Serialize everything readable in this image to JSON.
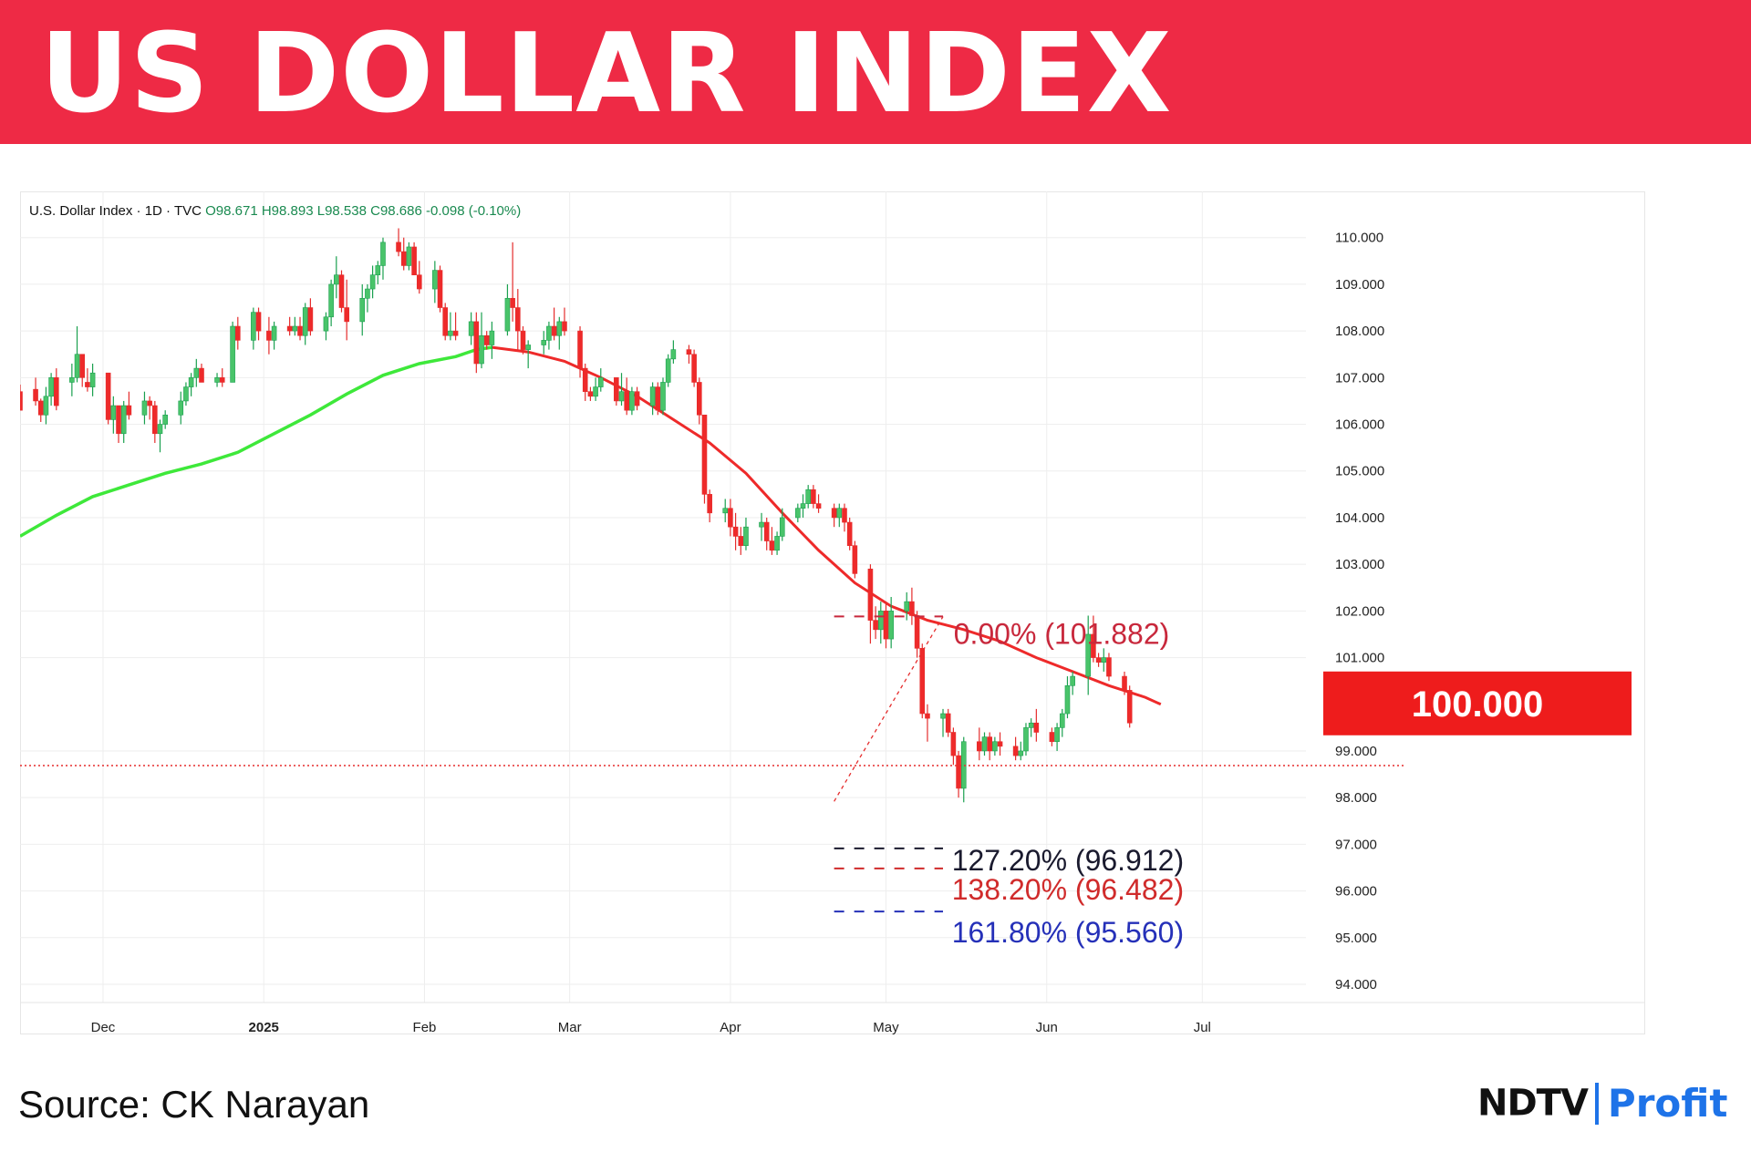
{
  "header": {
    "title": "US DOLLAR INDEX"
  },
  "chart_data": {
    "type": "candlestick",
    "info": {
      "symbol": "U.S. Dollar Index · 1D · TVC",
      "open": "O98.671",
      "high": "H98.893",
      "low": "L98.538",
      "close": "C98.686",
      "change": "-0.098 (-0.10%)"
    },
    "y_ticks": [
      "110.000",
      "109.000",
      "108.000",
      "107.000",
      "106.000",
      "105.000",
      "104.000",
      "103.000",
      "102.000",
      "101.000",
      "99.000",
      "98.000",
      "97.000",
      "96.000",
      "95.000",
      "94.000"
    ],
    "y_tick_values": [
      110,
      109,
      108,
      107,
      106,
      105,
      104,
      103,
      102,
      101,
      99,
      98,
      97,
      96,
      95,
      94
    ],
    "x_ticks": [
      "Dec",
      "2025",
      "Feb",
      "Mar",
      "Apr",
      "May",
      "Jun",
      "Jul"
    ],
    "x_tick_dates": [
      "2024-12-01",
      "2025-01-01",
      "2025-02-01",
      "2025-03-01",
      "2025-04-01",
      "2025-05-01",
      "2025-06-01",
      "2025-07-01"
    ],
    "ylim": [
      94,
      110.6
    ],
    "xlim": [
      "2024-11-15",
      "2025-07-21"
    ],
    "last_price": 98.686,
    "price_label": "100.000",
    "price_label_value": 100,
    "fib_levels": [
      {
        "label": "0.00% (101.882)",
        "value": 101.882,
        "color": "#c8283c"
      },
      {
        "label": "127.20% (96.912)",
        "value": 96.912,
        "color": "#1a1a2e"
      },
      {
        "label": "138.20% (96.482)",
        "value": 96.482,
        "color": "#d02b2b"
      },
      {
        "label": "161.80% (95.560)",
        "value": 95.56,
        "color": "#2530b8"
      }
    ],
    "fib_anchor": {
      "from_date": "2025-04-21",
      "from_value": 97.92,
      "to_date": "2025-05-12",
      "to_value": 101.88
    },
    "moving_average": {
      "color_above": "#3ee83a",
      "color_below": "#ee2a2a",
      "points": [
        [
          "2024-11-15",
          103.6
        ],
        [
          "2024-11-22",
          104.05
        ],
        [
          "2024-11-29",
          104.45
        ],
        [
          "2024-12-06",
          104.7
        ],
        [
          "2024-12-13",
          104.95
        ],
        [
          "2024-12-20",
          105.15
        ],
        [
          "2024-12-27",
          105.4
        ],
        [
          "2025-01-03",
          105.8
        ],
        [
          "2025-01-10",
          106.2
        ],
        [
          "2025-01-17",
          106.65
        ],
        [
          "2025-01-24",
          107.05
        ],
        [
          "2025-01-31",
          107.3
        ],
        [
          "2025-02-07",
          107.45
        ],
        [
          "2025-02-11",
          107.6
        ],
        [
          "2025-02-14",
          107.65
        ],
        [
          "2025-02-21",
          107.55
        ],
        [
          "2025-02-28",
          107.35
        ],
        [
          "2025-03-07",
          107.0
        ],
        [
          "2025-03-14",
          106.6
        ],
        [
          "2025-03-21",
          106.1
        ],
        [
          "2025-03-28",
          105.6
        ],
        [
          "2025-04-04",
          104.95
        ],
        [
          "2025-04-11",
          104.1
        ],
        [
          "2025-04-18",
          103.3
        ],
        [
          "2025-04-25",
          102.6
        ],
        [
          "2025-05-02",
          102.1
        ],
        [
          "2025-05-09",
          101.8
        ],
        [
          "2025-05-16",
          101.6
        ],
        [
          "2025-05-23",
          101.35
        ],
        [
          "2025-05-30",
          101.0
        ],
        [
          "2025-06-06",
          100.7
        ],
        [
          "2025-06-13",
          100.4
        ],
        [
          "2025-06-20",
          100.15
        ],
        [
          "2025-06-23",
          100.0
        ]
      ]
    },
    "candles": [
      [
        "2024-11-15",
        106.7,
        106.85,
        106.35,
        106.3
      ],
      [
        "2024-11-18",
        106.75,
        107.0,
        106.4,
        106.5
      ],
      [
        "2024-11-19",
        106.5,
        106.55,
        106.05,
        106.2
      ],
      [
        "2024-11-20",
        106.2,
        106.8,
        106.0,
        106.6
      ],
      [
        "2024-11-21",
        106.6,
        107.1,
        106.4,
        107.0
      ],
      [
        "2024-11-22",
        107.0,
        107.2,
        106.3,
        106.4
      ],
      [
        "2024-11-25",
        106.9,
        107.3,
        106.6,
        107.0
      ],
      [
        "2024-11-26",
        107.0,
        108.1,
        106.9,
        107.5
      ],
      [
        "2024-11-27",
        107.5,
        107.5,
        106.8,
        107.0
      ],
      [
        "2024-11-28",
        106.9,
        107.2,
        106.7,
        106.8
      ],
      [
        "2024-11-29",
        106.8,
        107.3,
        106.6,
        107.1
      ],
      [
        "2024-12-02",
        107.1,
        107.1,
        106.0,
        106.1
      ],
      [
        "2024-12-03",
        106.1,
        106.6,
        105.8,
        106.4
      ],
      [
        "2024-12-04",
        106.4,
        106.4,
        105.6,
        105.8
      ],
      [
        "2024-12-05",
        105.8,
        106.5,
        105.6,
        106.4
      ],
      [
        "2024-12-06",
        106.4,
        106.7,
        106.1,
        106.2
      ],
      [
        "2024-12-09",
        106.2,
        106.7,
        106.0,
        106.5
      ],
      [
        "2024-12-10",
        106.5,
        106.6,
        106.1,
        106.4
      ],
      [
        "2024-12-11",
        106.4,
        106.5,
        105.6,
        105.8
      ],
      [
        "2024-12-12",
        105.8,
        106.1,
        105.4,
        106.0
      ],
      [
        "2024-12-13",
        106.0,
        106.3,
        105.9,
        106.2
      ],
      [
        "2024-12-16",
        106.2,
        106.7,
        106.0,
        106.5
      ],
      [
        "2024-12-17",
        106.5,
        106.9,
        106.4,
        106.8
      ],
      [
        "2024-12-18",
        106.8,
        107.1,
        106.6,
        107.0
      ],
      [
        "2024-12-19",
        107.0,
        107.4,
        106.8,
        107.2
      ],
      [
        "2024-12-20",
        107.2,
        107.3,
        106.9,
        106.9
      ],
      [
        "2024-12-23",
        106.9,
        107.1,
        106.8,
        107.0
      ],
      [
        "2024-12-24",
        107.0,
        107.2,
        106.8,
        106.9
      ],
      [
        "2024-12-26",
        106.9,
        108.2,
        106.9,
        108.1
      ],
      [
        "2024-12-27",
        108.1,
        108.3,
        107.6,
        107.8
      ],
      [
        "2024-12-30",
        107.8,
        108.5,
        107.6,
        108.4
      ],
      [
        "2024-12-31",
        108.4,
        108.5,
        107.8,
        108.0
      ],
      [
        "2025-01-02",
        108.0,
        108.3,
        107.5,
        107.8
      ],
      [
        "2025-01-03",
        107.8,
        108.2,
        107.6,
        108.1
      ],
      [
        "2025-01-06",
        108.1,
        108.3,
        107.9,
        108.0
      ],
      [
        "2025-01-07",
        108.0,
        108.3,
        107.9,
        108.1
      ],
      [
        "2025-01-08",
        108.1,
        108.3,
        107.8,
        107.9
      ],
      [
        "2025-01-09",
        107.9,
        108.6,
        107.7,
        108.5
      ],
      [
        "2025-01-10",
        108.5,
        108.7,
        107.9,
        108.0
      ],
      [
        "2025-01-13",
        108.0,
        108.4,
        107.8,
        108.3
      ],
      [
        "2025-01-14",
        108.3,
        109.1,
        108.1,
        109.0
      ],
      [
        "2025-01-15",
        109.0,
        109.6,
        108.7,
        109.2
      ],
      [
        "2025-01-16",
        109.2,
        109.3,
        108.4,
        108.5
      ],
      [
        "2025-01-17",
        108.5,
        109.1,
        107.8,
        108.2
      ],
      [
        "2025-01-20",
        108.2,
        109.0,
        107.9,
        108.7
      ],
      [
        "2025-01-21",
        108.7,
        109.0,
        108.4,
        108.9
      ],
      [
        "2025-01-22",
        108.9,
        109.4,
        108.7,
        109.2
      ],
      [
        "2025-01-23",
        109.2,
        109.5,
        109.0,
        109.4
      ],
      [
        "2025-01-24",
        109.4,
        110.0,
        109.1,
        109.9
      ],
      [
        "2025-01-27",
        109.9,
        110.2,
        109.6,
        109.7
      ],
      [
        "2025-01-28",
        109.7,
        110.0,
        109.3,
        109.4
      ],
      [
        "2025-01-29",
        109.4,
        109.9,
        109.3,
        109.8
      ],
      [
        "2025-01-30",
        109.8,
        109.9,
        109.2,
        109.2
      ],
      [
        "2025-01-31",
        109.2,
        109.5,
        108.8,
        108.9
      ],
      [
        "2025-02-03",
        108.9,
        109.5,
        108.6,
        109.3
      ],
      [
        "2025-02-04",
        109.3,
        109.4,
        108.4,
        108.5
      ],
      [
        "2025-02-05",
        108.5,
        108.6,
        107.8,
        107.9
      ],
      [
        "2025-02-06",
        107.9,
        108.4,
        107.8,
        108.0
      ],
      [
        "2025-02-07",
        108.0,
        108.4,
        107.8,
        107.9
      ],
      [
        "2025-02-10",
        107.9,
        108.4,
        107.7,
        108.2
      ],
      [
        "2025-02-11",
        108.2,
        108.4,
        107.1,
        107.3
      ],
      [
        "2025-02-12",
        107.3,
        108.4,
        107.2,
        107.9
      ],
      [
        "2025-02-13",
        107.9,
        108.0,
        107.6,
        107.7
      ],
      [
        "2025-02-14",
        107.7,
        108.2,
        107.4,
        108.0
      ],
      [
        "2025-02-17",
        108.0,
        109.0,
        107.9,
        108.7
      ],
      [
        "2025-02-18",
        108.7,
        109.9,
        108.2,
        108.5
      ],
      [
        "2025-02-19",
        108.5,
        108.9,
        107.6,
        108.0
      ],
      [
        "2025-02-20",
        108.0,
        108.1,
        107.5,
        107.6
      ],
      [
        "2025-02-21",
        107.6,
        107.8,
        107.2,
        107.7
      ],
      [
        "2025-02-24",
        107.7,
        108.0,
        107.5,
        107.8
      ],
      [
        "2025-02-25",
        107.8,
        108.2,
        107.6,
        108.1
      ],
      [
        "2025-02-26",
        108.1,
        108.5,
        107.8,
        107.9
      ],
      [
        "2025-02-27",
        107.9,
        108.3,
        107.6,
        108.2
      ],
      [
        "2025-02-28",
        108.2,
        108.5,
        107.9,
        108.0
      ],
      [
        "2025-03-03",
        108.0,
        108.1,
        107.0,
        107.2
      ],
      [
        "2025-03-04",
        107.2,
        107.3,
        106.5,
        106.7
      ],
      [
        "2025-03-05",
        106.7,
        106.8,
        106.5,
        106.6
      ],
      [
        "2025-03-06",
        106.6,
        107.0,
        106.5,
        106.8
      ],
      [
        "2025-03-07",
        106.8,
        107.2,
        106.7,
        107.0
      ],
      [
        "2025-03-10",
        107.0,
        107.0,
        106.4,
        106.5
      ],
      [
        "2025-03-11",
        106.5,
        107.1,
        106.4,
        106.7
      ],
      [
        "2025-03-12",
        106.7,
        107.0,
        106.2,
        106.3
      ],
      [
        "2025-03-13",
        106.3,
        106.8,
        106.2,
        106.7
      ],
      [
        "2025-03-14",
        106.7,
        106.8,
        106.3,
        106.4
      ],
      [
        "2025-03-17",
        106.4,
        106.9,
        106.2,
        106.8
      ],
      [
        "2025-03-18",
        106.8,
        106.9,
        106.2,
        106.3
      ],
      [
        "2025-03-19",
        106.3,
        107.0,
        106.2,
        106.9
      ],
      [
        "2025-03-20",
        106.9,
        107.5,
        106.8,
        107.4
      ],
      [
        "2025-03-21",
        107.4,
        107.8,
        107.3,
        107.6
      ],
      [
        "2025-03-24",
        107.6,
        107.7,
        107.3,
        107.5
      ],
      [
        "2025-03-25",
        107.5,
        107.6,
        106.8,
        106.9
      ],
      [
        "2025-03-26",
        106.9,
        107.0,
        106.0,
        106.2
      ],
      [
        "2025-03-27",
        106.2,
        106.2,
        104.3,
        104.5
      ],
      [
        "2025-03-28",
        104.5,
        104.6,
        103.9,
        104.1
      ],
      [
        "2025-03-31",
        104.1,
        104.4,
        103.9,
        104.2
      ],
      [
        "2025-04-01",
        104.2,
        104.4,
        103.6,
        103.8
      ],
      [
        "2025-04-02",
        103.8,
        104.1,
        103.3,
        103.6
      ],
      [
        "2025-04-03",
        103.6,
        103.8,
        103.2,
        103.4
      ],
      [
        "2025-04-04",
        103.4,
        104.0,
        103.3,
        103.8
      ],
      [
        "2025-04-07",
        103.8,
        104.1,
        103.5,
        103.9
      ],
      [
        "2025-04-08",
        103.9,
        104.0,
        103.3,
        103.5
      ],
      [
        "2025-04-09",
        103.5,
        103.8,
        103.2,
        103.3
      ],
      [
        "2025-04-10",
        103.3,
        103.7,
        103.2,
        103.6
      ],
      [
        "2025-04-11",
        103.6,
        104.2,
        103.5,
        104.0
      ],
      [
        "2025-04-14",
        104.0,
        104.3,
        103.9,
        104.2
      ],
      [
        "2025-04-15",
        104.2,
        104.5,
        104.0,
        104.3
      ],
      [
        "2025-04-16",
        104.3,
        104.7,
        104.2,
        104.6
      ],
      [
        "2025-04-17",
        104.6,
        104.7,
        104.2,
        104.3
      ],
      [
        "2025-04-18",
        104.3,
        104.5,
        104.1,
        104.2
      ],
      [
        "2025-04-21",
        104.2,
        104.3,
        103.8,
        104.0
      ],
      [
        "2025-04-22",
        104.0,
        104.3,
        103.8,
        104.2
      ],
      [
        "2025-04-23",
        104.2,
        104.3,
        103.7,
        103.9
      ],
      [
        "2025-04-24",
        103.9,
        104.0,
        103.3,
        103.4
      ],
      [
        "2025-04-25",
        103.4,
        103.5,
        102.7,
        102.8
      ],
      [
        "2025-04-28",
        102.9,
        103.0,
        101.3,
        101.8
      ],
      [
        "2025-04-29",
        101.8,
        102.1,
        101.4,
        101.6
      ],
      [
        "2025-04-30",
        101.6,
        102.2,
        101.3,
        102.0
      ],
      [
        "2025-05-01",
        102.0,
        102.2,
        101.2,
        101.4
      ],
      [
        "2025-05-02",
        101.4,
        102.3,
        101.2,
        102.0
      ],
      [
        "2025-05-05",
        102.0,
        102.4,
        101.8,
        102.2
      ],
      [
        "2025-05-06",
        102.2,
        102.5,
        101.7,
        101.9
      ],
      [
        "2025-05-07",
        101.9,
        102.0,
        101.0,
        101.2
      ],
      [
        "2025-05-08",
        101.2,
        101.3,
        99.7,
        99.8
      ],
      [
        "2025-05-09",
        99.8,
        100.0,
        99.2,
        99.7
      ],
      [
        "2025-05-12",
        99.7,
        99.9,
        99.3,
        99.8
      ],
      [
        "2025-05-13",
        99.8,
        99.9,
        99.3,
        99.4
      ],
      [
        "2025-05-14",
        99.4,
        99.5,
        98.7,
        98.9
      ],
      [
        "2025-05-15",
        98.9,
        99.0,
        98.0,
        98.2
      ],
      [
        "2025-05-16",
        98.2,
        99.3,
        97.9,
        99.2
      ],
      [
        "2025-05-19",
        99.2,
        99.5,
        98.8,
        99.0
      ],
      [
        "2025-05-20",
        99.0,
        99.4,
        98.9,
        99.3
      ],
      [
        "2025-05-21",
        99.3,
        99.4,
        98.8,
        99.0
      ],
      [
        "2025-05-22",
        99.0,
        99.3,
        98.9,
        99.2
      ],
      [
        "2025-05-23",
        99.2,
        99.4,
        98.9,
        99.1
      ],
      [
        "2025-05-26",
        99.1,
        99.3,
        98.8,
        98.9
      ],
      [
        "2025-05-27",
        98.9,
        99.2,
        98.8,
        99.0
      ],
      [
        "2025-05-28",
        99.0,
        99.6,
        98.9,
        99.5
      ],
      [
        "2025-05-29",
        99.5,
        99.7,
        99.3,
        99.6
      ],
      [
        "2025-05-30",
        99.6,
        99.9,
        99.2,
        99.4
      ],
      [
        "2025-06-02",
        99.4,
        99.5,
        99.1,
        99.2
      ],
      [
        "2025-06-03",
        99.2,
        99.6,
        99.0,
        99.5
      ],
      [
        "2025-06-04",
        99.5,
        99.9,
        99.3,
        99.8
      ],
      [
        "2025-06-05",
        99.8,
        100.6,
        99.7,
        100.4
      ],
      [
        "2025-06-06",
        100.4,
        100.7,
        100.2,
        100.6
      ],
      [
        "2025-06-09",
        100.6,
        101.9,
        100.2,
        101.5
      ],
      [
        "2025-06-10",
        101.5,
        101.9,
        100.9,
        101.0
      ],
      [
        "2025-06-11",
        101.0,
        101.1,
        100.8,
        100.9
      ],
      [
        "2025-06-12",
        100.9,
        101.2,
        100.7,
        101.0
      ],
      [
        "2025-06-13",
        101.0,
        101.1,
        100.5,
        100.6
      ],
      [
        "2025-06-16",
        100.6,
        100.7,
        100.2,
        100.3
      ],
      [
        "2025-06-17",
        100.3,
        100.4,
        99.5,
        99.6
      ]
    ]
  },
  "footer": {
    "source": "Source: CK Narayan",
    "logo_ndtv": "NDTV",
    "logo_profit": "Profit"
  }
}
